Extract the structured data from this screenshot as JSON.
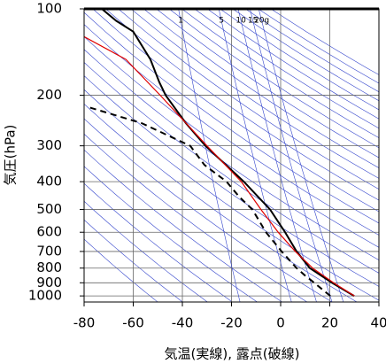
{
  "chart_data": {
    "type": "line",
    "xlabel": "気温(実線), 露点(破線)",
    "ylabel": "気圧(hPa)",
    "xlim": [
      -80,
      40
    ],
    "xticks": [
      -80,
      -60,
      -40,
      -20,
      0,
      20,
      40
    ],
    "ylim": [
      1050,
      100
    ],
    "yticks": [
      100,
      200,
      300,
      400,
      500,
      600,
      700,
      800,
      900,
      1000
    ],
    "log_y": true,
    "grid": true,
    "mixing_ratio_lines": [
      1,
      5,
      10,
      15,
      {
        "value": 20,
        "label": "20g"
      }
    ],
    "series": [
      {
        "color": "#000000",
        "style": "solid",
        "y": [
          1000,
          900,
          800,
          700,
          600,
          500,
          400,
          300,
          250,
          200,
          180,
          150,
          120,
          110,
          100
        ],
        "x": [
          29.9,
          20.9,
          11.9,
          6.5,
          1.8,
          -4.3,
          -15,
          -30.6,
          -38.6,
          -46.8,
          -49.4,
          -53,
          -60,
          -67,
          -72.8
        ]
      },
      {
        "color": "#000000",
        "style": "dashed",
        "y": [
          1000,
          950,
          900,
          850,
          800,
          700,
          600,
          500,
          450,
          400,
          350,
          300,
          250,
          220
        ],
        "x": [
          20.2,
          17,
          13.7,
          10,
          6.5,
          0.4,
          -6,
          -11.5,
          -17,
          -22,
          -31,
          -36.8,
          -56.6,
          -78.2
        ]
      },
      {
        "color": "#e00000",
        "style": "solid",
        "y": [
          1000,
          900,
          800,
          700,
          600,
          500,
          400,
          300,
          200,
          150,
          125
        ],
        "x": [
          30,
          21.5,
          13,
          6,
          -1,
          -8,
          -16,
          -30,
          -49,
          -63,
          -80
        ]
      }
    ]
  }
}
